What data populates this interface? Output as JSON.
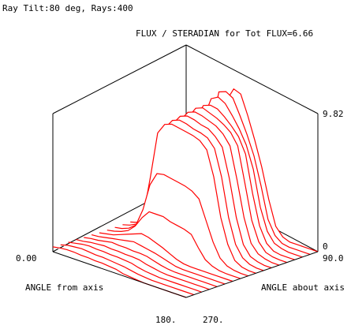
{
  "chart_data": {
    "type": "surface-3d",
    "header": "Ray Tilt:80 deg, Rays:400",
    "title": "FLUX / STERADIAN for Tot FLUX=6.66",
    "z_axis": {
      "min_label": "0",
      "max_label": "9.82",
      "range": [
        0,
        9.82
      ]
    },
    "x_axis": {
      "label": "ANGLE from axis",
      "start_label": "0.00",
      "end_label": "180.",
      "range": [
        0,
        180
      ]
    },
    "y_axis": {
      "label": "ANGLE about axis",
      "start_label": "90.0",
      "end_label": "270.",
      "range": [
        90,
        270
      ]
    },
    "n_slices": 18,
    "slices": [
      {
        "y": 90,
        "z": [
          0.35,
          0.45,
          0.5,
          0.5,
          0.45,
          0.45,
          0.4,
          0.4,
          0.35,
          0.3,
          0.15,
          0.1,
          0.05,
          0,
          0,
          0,
          0,
          0,
          0,
          0
        ]
      },
      {
        "y": 100,
        "z": [
          0.3,
          0.45,
          0.5,
          0.55,
          0.5,
          0.45,
          0.45,
          0.4,
          0.35,
          0.3,
          0.2,
          0.1,
          0.05,
          0,
          0,
          0,
          0,
          0,
          0,
          0
        ]
      },
      {
        "y": 110,
        "z": [
          0.3,
          0.4,
          0.5,
          0.55,
          0.5,
          0.5,
          0.45,
          0.45,
          0.4,
          0.35,
          0.2,
          0.1,
          0.05,
          0,
          0,
          0,
          0,
          0,
          0,
          0
        ]
      },
      {
        "y": 120,
        "z": [
          0.3,
          0.35,
          0.45,
          0.5,
          0.55,
          0.5,
          0.5,
          0.45,
          0.45,
          0.4,
          0.25,
          0.15,
          0.05,
          0,
          0,
          0,
          0,
          0,
          0,
          0
        ]
      },
      {
        "y": 130,
        "z": [
          0.25,
          0.35,
          0.4,
          0.5,
          0.6,
          0.55,
          0.55,
          0.5,
          0.5,
          0.45,
          0.3,
          0.15,
          0.05,
          0,
          0,
          0,
          0,
          0,
          0,
          0
        ]
      },
      {
        "y": 140,
        "z": [
          0.25,
          0.3,
          0.4,
          0.5,
          0.6,
          0.7,
          0.8,
          0.7,
          0.6,
          0.5,
          0.35,
          0.2,
          0.05,
          0,
          0,
          0,
          0,
          0,
          0,
          0
        ]
      },
      {
        "y": 150,
        "z": [
          0.2,
          0.3,
          0.4,
          0.6,
          0.8,
          1.0,
          1.2,
          1.1,
          0.9,
          0.7,
          0.45,
          0.2,
          0.05,
          0,
          0,
          0,
          0,
          0,
          0,
          0
        ]
      },
      {
        "y": 160,
        "z": [
          0.2,
          0.3,
          0.45,
          0.7,
          1.2,
          2.0,
          2.6,
          2.6,
          2.6,
          2.4,
          2.3,
          2.2,
          2.0,
          1.2,
          0.5,
          0.2,
          0.05,
          0,
          0,
          0
        ]
      },
      {
        "y": 170,
        "z": [
          0.2,
          0.3,
          0.5,
          0.9,
          2.2,
          4.2,
          5.2,
          5.3,
          5.2,
          5.1,
          5.0,
          4.8,
          4.4,
          3.0,
          1.6,
          0.6,
          0.2,
          0.05,
          0,
          0
        ]
      },
      {
        "y": 180,
        "z": [
          0.2,
          0.35,
          0.6,
          1.5,
          4.5,
          7.8,
          8.6,
          8.8,
          8.7,
          8.6,
          8.5,
          8.3,
          7.8,
          6.0,
          3.2,
          1.4,
          0.4,
          0.1,
          0,
          0
        ]
      },
      {
        "y": 190,
        "z": [
          0.2,
          0.35,
          0.6,
          1.5,
          4.6,
          8.0,
          8.7,
          8.9,
          8.8,
          8.6,
          8.5,
          8.3,
          7.7,
          5.8,
          3.0,
          1.2,
          0.4,
          0.1,
          0,
          0
        ]
      },
      {
        "y": 200,
        "z": [
          0.2,
          0.35,
          0.6,
          1.6,
          4.6,
          8.1,
          8.8,
          9.0,
          8.9,
          8.7,
          8.6,
          8.2,
          7.6,
          5.5,
          2.8,
          1.0,
          0.3,
          0.1,
          0,
          0
        ]
      },
      {
        "y": 210,
        "z": [
          0.2,
          0.35,
          0.6,
          1.6,
          4.6,
          8.2,
          8.9,
          9.1,
          9.0,
          8.8,
          8.6,
          8.2,
          7.5,
          5.2,
          2.6,
          0.9,
          0.3,
          0.1,
          0,
          0
        ]
      },
      {
        "y": 220,
        "z": [
          0.2,
          0.35,
          0.6,
          1.5,
          4.5,
          8.2,
          9.0,
          9.2,
          9.0,
          8.8,
          8.5,
          8.1,
          7.3,
          4.8,
          2.2,
          0.8,
          0.2,
          0.05,
          0,
          0
        ]
      },
      {
        "y": 230,
        "z": [
          0.2,
          0.3,
          0.5,
          1.3,
          4.0,
          8.0,
          9.0,
          9.2,
          9.1,
          8.7,
          8.2,
          7.6,
          6.5,
          3.8,
          1.6,
          0.5,
          0.1,
          0,
          0,
          0
        ]
      },
      {
        "y": 240,
        "z": [
          0.15,
          0.3,
          0.45,
          1.1,
          3.5,
          7.8,
          9.3,
          9.6,
          9.3,
          8.6,
          7.8,
          6.8,
          5.2,
          2.6,
          1.0,
          0.3,
          0.1,
          0,
          0,
          0
        ]
      },
      {
        "y": 250,
        "z": [
          0.15,
          0.25,
          0.4,
          0.8,
          2.5,
          7.0,
          9.6,
          9.8,
          9.5,
          8.4,
          7.2,
          5.8,
          3.8,
          1.5,
          0.5,
          0.1,
          0,
          0,
          0,
          0
        ]
      },
      {
        "y": 260,
        "z": [
          0.1,
          0.2,
          0.3,
          0.5,
          1.2,
          4.5,
          8.8,
          9.8,
          9.6,
          8.2,
          6.6,
          4.8,
          2.6,
          0.8,
          0.2,
          0,
          0,
          0,
          0,
          0
        ]
      }
    ]
  },
  "colors": {
    "surface": "#ff0000",
    "frame": "#000000",
    "background": "#ffffff"
  }
}
